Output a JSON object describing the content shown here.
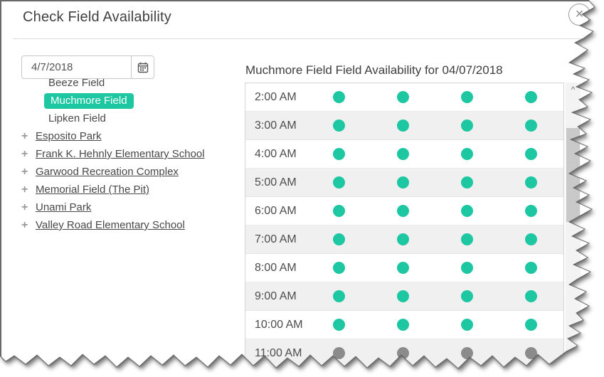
{
  "modal": {
    "title": "Check Field Availability",
    "close_icon": "×"
  },
  "date_picker": {
    "value": "4/7/2018"
  },
  "field_tree": {
    "scrolled_partial_item": "Beeze Field",
    "selected_item": "Muchmore Field",
    "unselected_item": "Lipken Field",
    "plus_icon": "+",
    "locations": [
      "Esposito Park",
      "Frank K. Hehnly Elementary School",
      "Garwood Recreation Complex",
      "Memorial Field (The Pit)",
      "Unami Park",
      "Valley Road Elementary School"
    ]
  },
  "availability": {
    "heading": "Muchmore Field Field Availability for 04/07/2018",
    "rows": [
      {
        "time": "2:00 AM",
        "slots": [
          "available",
          "available",
          "available",
          "available"
        ]
      },
      {
        "time": "3:00 AM",
        "slots": [
          "available",
          "available",
          "available",
          "available"
        ]
      },
      {
        "time": "4:00 AM",
        "slots": [
          "available",
          "available",
          "available",
          "available"
        ]
      },
      {
        "time": "5:00 AM",
        "slots": [
          "available",
          "available",
          "available",
          "available"
        ]
      },
      {
        "time": "6:00 AM",
        "slots": [
          "available",
          "available",
          "available",
          "available"
        ]
      },
      {
        "time": "7:00 AM",
        "slots": [
          "available",
          "available",
          "available",
          "available"
        ]
      },
      {
        "time": "8:00 AM",
        "slots": [
          "available",
          "available",
          "available",
          "available"
        ]
      },
      {
        "time": "9:00 AM",
        "slots": [
          "available",
          "available",
          "available",
          "available"
        ]
      },
      {
        "time": "10:00 AM",
        "slots": [
          "available",
          "available",
          "available",
          "available"
        ]
      },
      {
        "time": "11:00 AM",
        "slots": [
          "unavailable",
          "unavailable",
          "unavailable",
          "unavailable"
        ]
      }
    ]
  },
  "scrollbar": {
    "up_icon": "^",
    "down_icon": "v"
  },
  "colors": {
    "accent": "#1cc7a2",
    "available": "#1cc7a2",
    "unavailable": "#8b8b8b"
  }
}
